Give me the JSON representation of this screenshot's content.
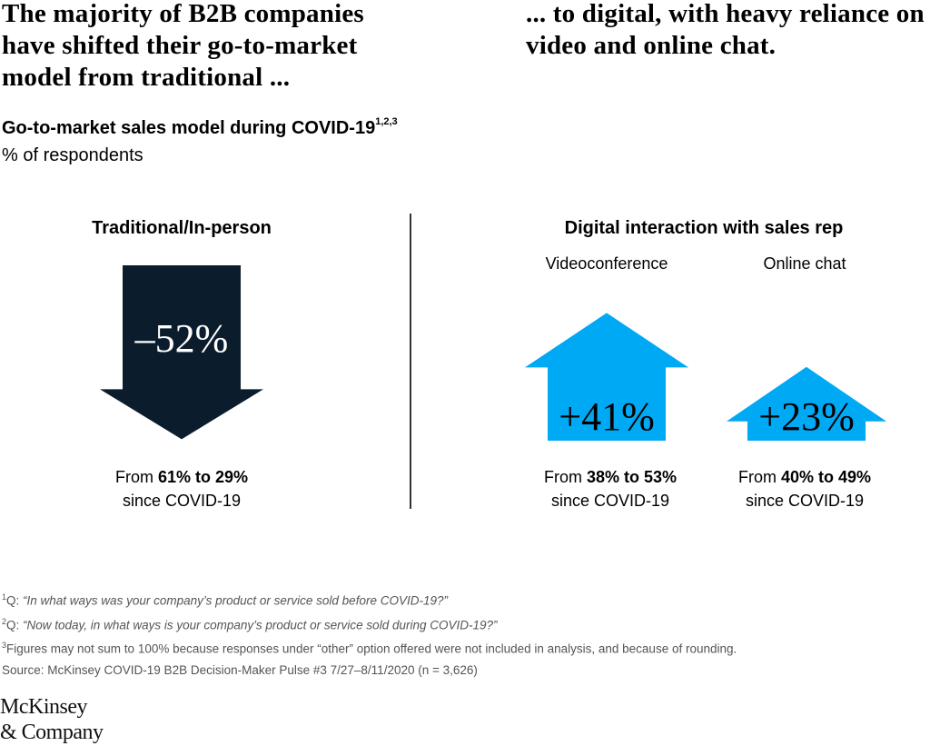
{
  "headline_left": "The majority of B2B companies have shifted their go-to-market model from traditional ...",
  "headline_right": "... to digital, with heavy reliance on video and online chat.",
  "chart_data": {
    "type": "bar",
    "title": "Go-to-market sales model during COVID-19",
    "title_superscript": "1,2,3",
    "unit": "% of respondents",
    "section_traditional": "Traditional/In-person",
    "section_digital": "Digital interaction with sales rep",
    "bars": [
      {
        "category": "Traditional/In-person",
        "label": "",
        "change_label": "–52%",
        "change": -52,
        "from": 61,
        "to": 29,
        "from_text_prefix": "From ",
        "range_text": "61% to 29%",
        "since_text": "since COVID-19",
        "color": "#0b1c2c",
        "text_color": "#ffffff"
      },
      {
        "category": "Videoconference",
        "label": "Videoconference",
        "change_label": "+41%",
        "change": 41,
        "from": 38,
        "to": 53,
        "from_text_prefix": "From ",
        "range_text": "38% to 53%",
        "since_text": "since COVID-19",
        "color": "#00a9f4",
        "text_color": "#000000"
      },
      {
        "category": "Online chat",
        "label": "Online chat",
        "change_label": "+23%",
        "change": 23,
        "from": 40,
        "to": 49,
        "from_text_prefix": "From ",
        "range_text": "40% to 49%",
        "since_text": "since COVID-19",
        "color": "#00a9f4",
        "text_color": "#000000"
      }
    ]
  },
  "footnotes": {
    "q1_prefix": "Q: ",
    "q1_text": "“In what ways was your company’s product or service sold before COVID-19?”",
    "q2_prefix": "Q: ",
    "q2_text": "“Now today, in what ways is your company’s product or service sold during COVID-19?”",
    "n3_text": "Figures may not sum to 100% because responses under “other” option offered were not included in analysis, and because of rounding.",
    "source": "Source: McKinsey COVID-19 B2B Decision-Maker Pulse #3 7/27–8/11/2020 (n = 3,626)",
    "marks": [
      "1",
      "2",
      "3"
    ]
  },
  "logo": {
    "line1": "McKinsey",
    "line2": "& Company"
  }
}
